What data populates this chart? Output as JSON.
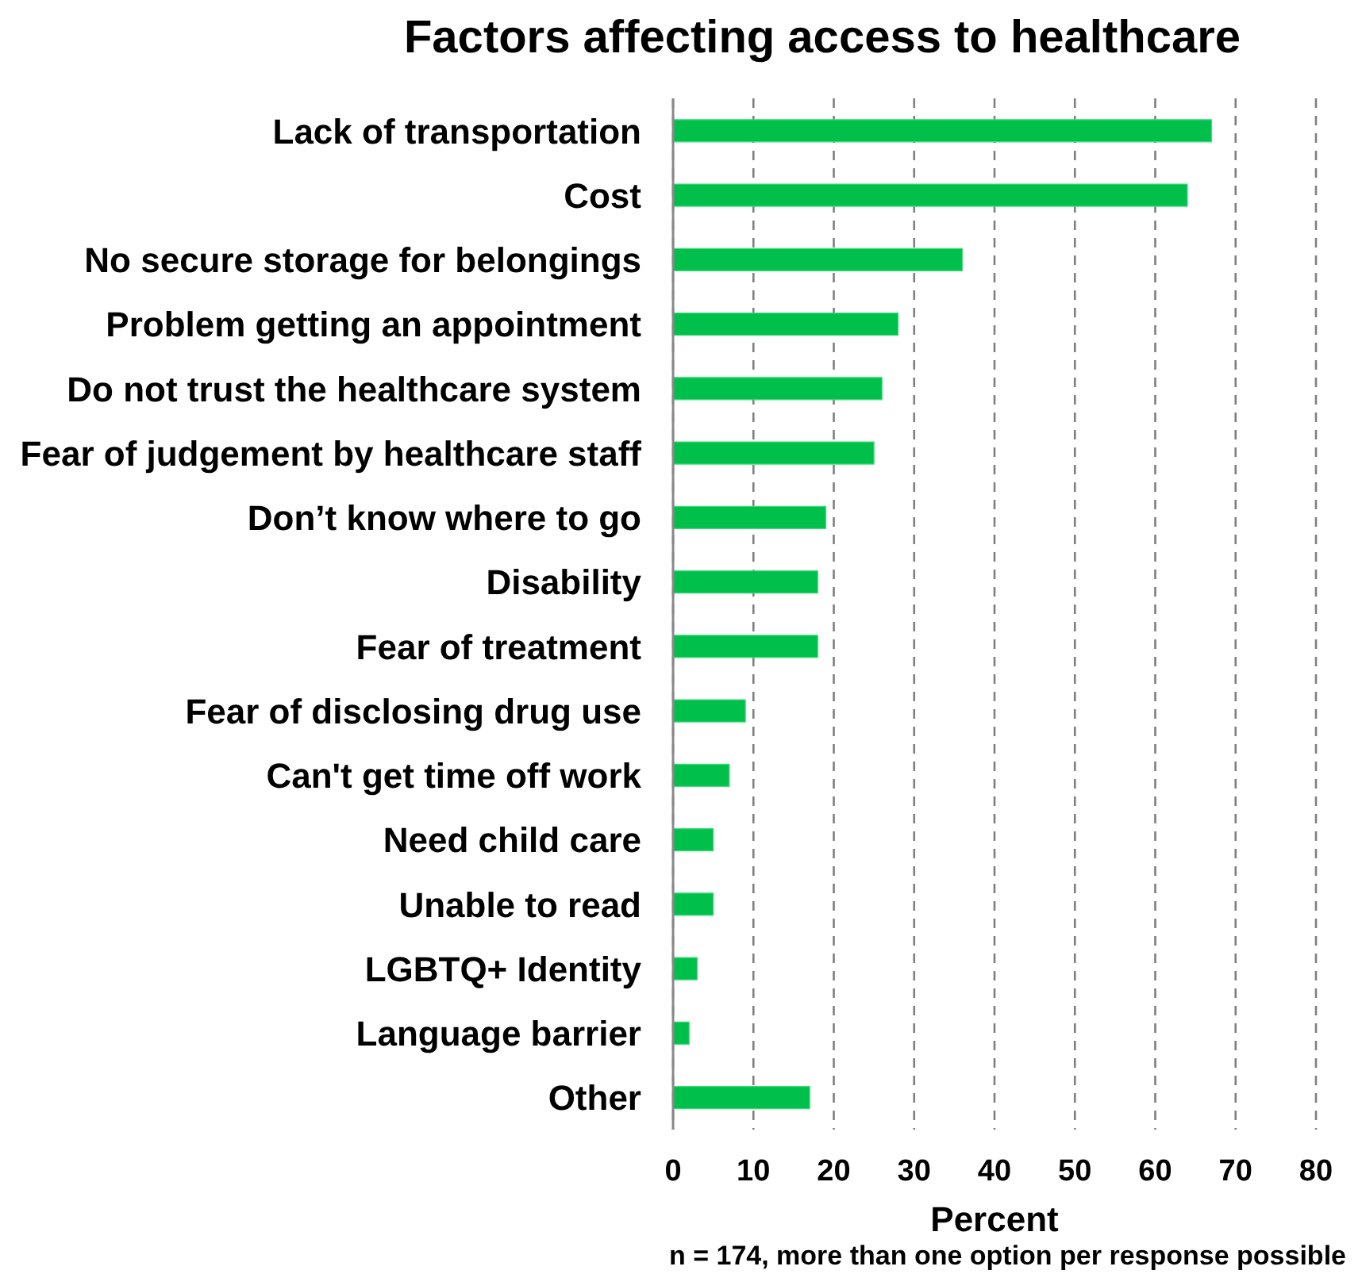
{
  "chart_data": {
    "type": "bar",
    "orientation": "horizontal",
    "title": "Factors affecting access to healthcare",
    "xlabel": "Percent",
    "annotations": [
      "n = 174, more than one option per response possible"
    ],
    "categories": [
      "Lack of transportation",
      "Cost",
      "No secure storage for belongings",
      "Problem getting an appointment",
      "Do not trust the healthcare system",
      "Fear of judgement by healthcare staff",
      "Don’t know where to go",
      "Disability",
      "Fear of treatment",
      "Fear of disclosing drug use",
      "Can't get time off work",
      "Need child care",
      "Unable to read",
      "LGBTQ+ Identity",
      "Language barrier",
      "Other"
    ],
    "values": [
      67,
      64,
      36,
      28,
      26,
      25,
      19,
      18,
      18,
      9,
      7,
      5,
      5,
      3,
      2,
      17
    ],
    "color": "#00c04b",
    "xlim": [
      0,
      80
    ],
    "xticks": [
      0,
      10,
      20,
      30,
      40,
      50,
      60,
      70,
      80
    ],
    "grid": "x"
  }
}
